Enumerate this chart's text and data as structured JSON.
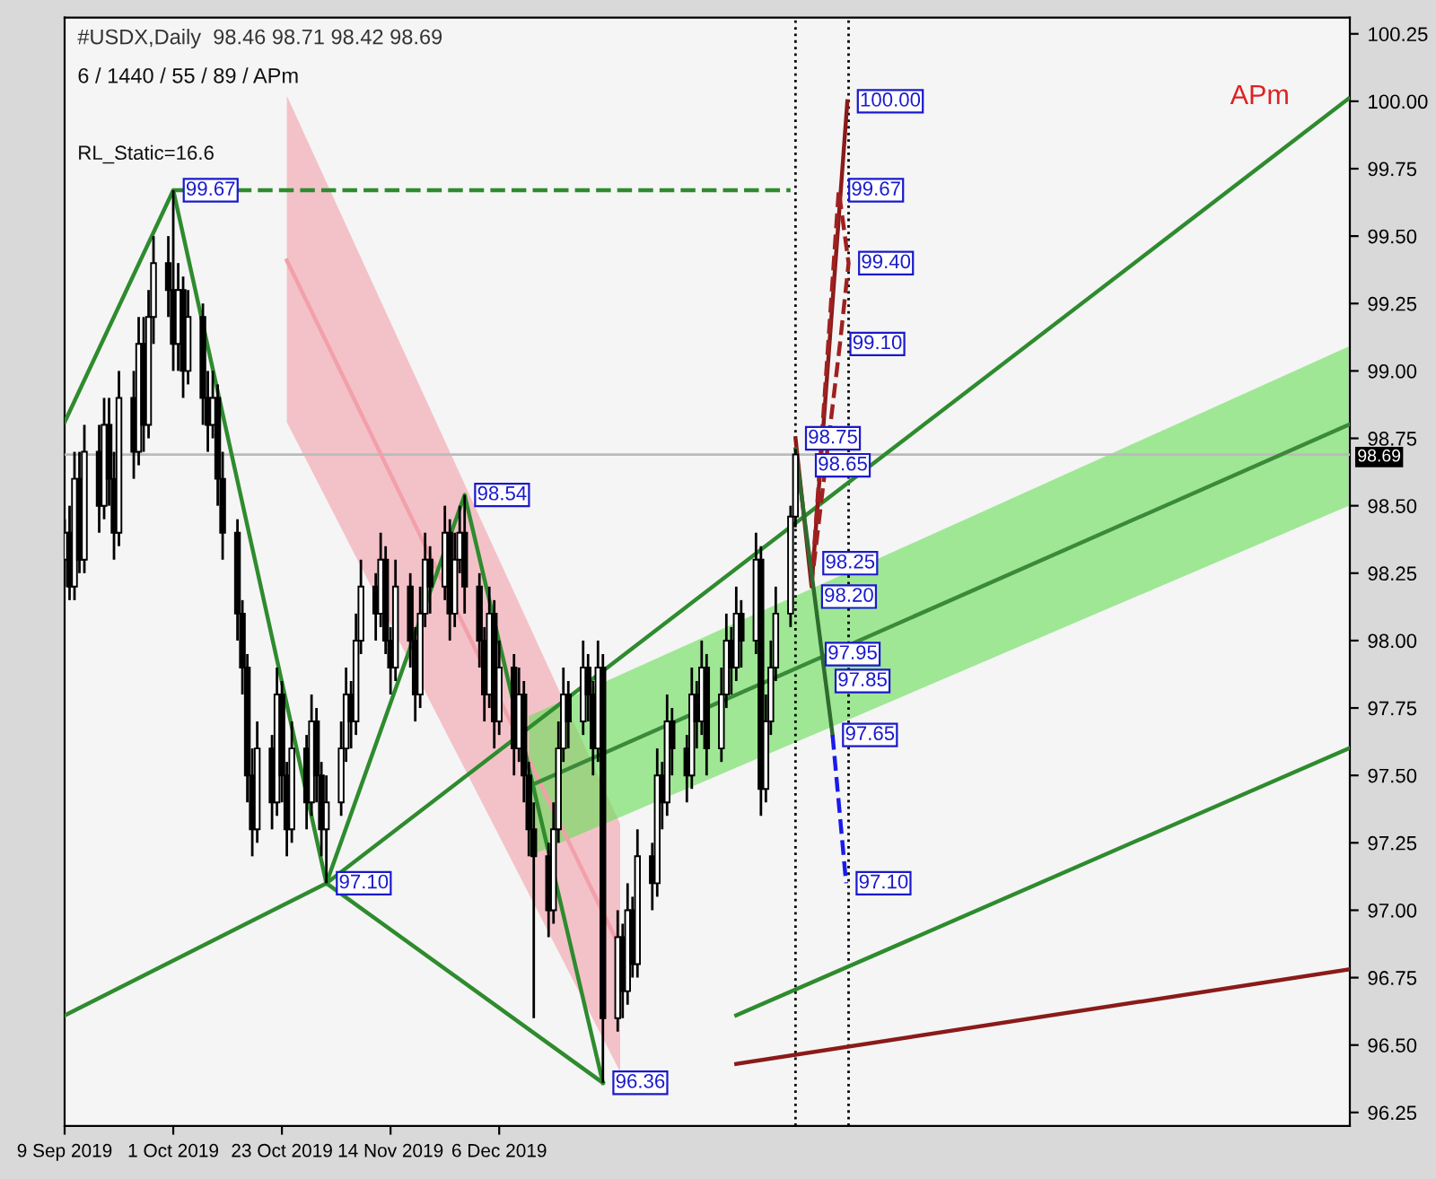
{
  "chart_data": {
    "type": "candlestick",
    "title": "#USDX,Daily  98.46 98.71 98.42 98.69",
    "subtitle": "6 / 1440 / 55 / 89 / APm",
    "x": [
      "2019-09-09",
      "2019-09-10",
      "2019-09-11",
      "2019-09-12",
      "2019-09-13",
      "2019-09-16",
      "2019-09-17",
      "2019-09-18",
      "2019-09-19",
      "2019-09-20",
      "2019-09-23",
      "2019-09-24",
      "2019-09-25",
      "2019-09-26",
      "2019-09-27",
      "2019-09-30",
      "2019-10-01",
      "2019-10-02",
      "2019-10-03",
      "2019-10-04",
      "2019-10-07",
      "2019-10-08",
      "2019-10-09",
      "2019-10-10",
      "2019-10-11",
      "2019-10-14",
      "2019-10-15",
      "2019-10-16",
      "2019-10-17",
      "2019-10-18",
      "2019-10-21",
      "2019-10-22",
      "2019-10-23",
      "2019-10-24",
      "2019-10-25",
      "2019-10-28",
      "2019-10-29",
      "2019-10-30",
      "2019-10-31",
      "2019-11-01",
      "2019-11-04",
      "2019-11-05",
      "2019-11-06",
      "2019-11-07",
      "2019-11-08",
      "2019-11-11",
      "2019-11-12",
      "2019-11-13",
      "2019-11-14",
      "2019-11-15",
      "2019-11-18",
      "2019-11-19",
      "2019-11-20",
      "2019-11-21",
      "2019-11-22",
      "2019-11-25",
      "2019-11-26",
      "2019-11-27",
      "2019-11-28",
      "2019-11-29",
      "2019-12-02",
      "2019-12-03",
      "2019-12-04",
      "2019-12-05",
      "2019-12-06",
      "2019-12-09",
      "2019-12-10",
      "2019-12-11",
      "2019-12-12",
      "2019-12-13",
      "2019-12-16",
      "2019-12-17",
      "2019-12-18",
      "2019-12-19",
      "2019-12-20",
      "2019-12-23",
      "2019-12-24",
      "2019-12-25",
      "2019-12-26",
      "2019-12-27",
      "2019-12-30",
      "2019-12-31",
      "2020-01-01",
      "2020-01-02",
      "2020-01-03",
      "2020-01-06",
      "2020-01-07",
      "2020-01-08",
      "2020-01-09",
      "2020-01-10",
      "2020-01-13",
      "2020-01-14",
      "2020-01-15",
      "2020-01-16",
      "2020-01-17",
      "2020-01-20",
      "2020-01-21",
      "2020-01-22",
      "2020-01-23",
      "2020-01-24",
      "2020-01-27",
      "2020-01-28",
      "2020-01-29",
      "2020-01-30",
      "2020-01-31",
      "2020-02-03",
      "2020-02-04"
    ],
    "ohlc": [
      [
        98.3,
        98.45,
        98.2,
        98.4
      ],
      [
        98.4,
        98.5,
        98.15,
        98.2
      ],
      [
        98.2,
        98.7,
        98.15,
        98.6
      ],
      [
        98.6,
        98.7,
        98.25,
        98.3
      ],
      [
        98.3,
        98.8,
        98.25,
        98.7
      ],
      [
        98.7,
        98.8,
        98.4,
        98.5
      ],
      [
        98.5,
        98.9,
        98.45,
        98.8
      ],
      [
        98.8,
        98.9,
        98.5,
        98.6
      ],
      [
        98.6,
        98.7,
        98.3,
        98.4
      ],
      [
        98.4,
        99.0,
        98.35,
        98.9
      ],
      [
        98.9,
        99.0,
        98.6,
        98.7
      ],
      [
        98.7,
        99.2,
        98.65,
        99.1
      ],
      [
        99.1,
        99.2,
        98.7,
        98.8
      ],
      [
        98.8,
        99.3,
        98.75,
        99.2
      ],
      [
        99.2,
        99.5,
        99.1,
        99.4
      ],
      [
        99.4,
        99.5,
        99.2,
        99.3
      ],
      [
        99.3,
        99.67,
        99.0,
        99.1
      ],
      [
        99.1,
        99.4,
        99.0,
        99.3
      ],
      [
        99.3,
        99.35,
        98.9,
        99.0
      ],
      [
        99.0,
        99.3,
        98.95,
        99.2
      ],
      [
        99.2,
        99.25,
        98.8,
        98.9
      ],
      [
        98.9,
        99.0,
        98.7,
        98.8
      ],
      [
        98.8,
        99.0,
        98.75,
        98.9
      ],
      [
        98.9,
        98.95,
        98.5,
        98.6
      ],
      [
        98.6,
        98.7,
        98.3,
        98.4
      ],
      [
        98.4,
        98.45,
        98.0,
        98.1
      ],
      [
        98.1,
        98.15,
        97.8,
        97.9
      ],
      [
        97.9,
        97.95,
        97.4,
        97.5
      ],
      [
        97.5,
        97.6,
        97.2,
        97.3
      ],
      [
        97.3,
        97.7,
        97.25,
        97.6
      ],
      [
        97.6,
        97.65,
        97.3,
        97.4
      ],
      [
        97.4,
        97.9,
        97.35,
        97.8
      ],
      [
        97.8,
        97.85,
        97.4,
        97.5
      ],
      [
        97.5,
        97.55,
        97.2,
        97.3
      ],
      [
        97.3,
        97.7,
        97.25,
        97.6
      ],
      [
        97.6,
        97.65,
        97.3,
        97.4
      ],
      [
        97.4,
        97.8,
        97.35,
        97.7
      ],
      [
        97.7,
        97.75,
        97.4,
        97.5
      ],
      [
        97.5,
        97.55,
        97.2,
        97.3
      ],
      [
        97.3,
        97.5,
        97.1,
        97.4
      ],
      [
        97.4,
        97.7,
        97.35,
        97.6
      ],
      [
        97.6,
        97.9,
        97.55,
        97.8
      ],
      [
        97.8,
        97.85,
        97.6,
        97.7
      ],
      [
        97.7,
        98.1,
        97.65,
        98.0
      ],
      [
        98.0,
        98.3,
        97.95,
        98.2
      ],
      [
        98.2,
        98.25,
        98.0,
        98.1
      ],
      [
        98.1,
        98.4,
        98.05,
        98.3
      ],
      [
        98.3,
        98.35,
        97.95,
        98.0
      ],
      [
        98.0,
        98.05,
        97.8,
        97.9
      ],
      [
        97.9,
        98.3,
        97.85,
        98.2
      ],
      [
        98.2,
        98.25,
        97.9,
        98.0
      ],
      [
        98.0,
        98.05,
        97.7,
        97.8
      ],
      [
        97.8,
        98.2,
        97.75,
        98.1
      ],
      [
        98.1,
        98.4,
        98.05,
        98.3
      ],
      [
        98.3,
        98.35,
        98.1,
        98.2
      ],
      [
        98.2,
        98.5,
        98.15,
        98.4
      ],
      [
        98.4,
        98.45,
        98.0,
        98.1
      ],
      [
        98.1,
        98.4,
        98.05,
        98.3
      ],
      [
        98.3,
        98.5,
        98.25,
        98.4
      ],
      [
        98.4,
        98.54,
        98.1,
        98.2
      ],
      [
        98.2,
        98.25,
        97.9,
        98.0
      ],
      [
        98.0,
        98.05,
        97.7,
        97.8
      ],
      [
        97.8,
        98.2,
        97.75,
        98.1
      ],
      [
        98.1,
        98.15,
        97.6,
        97.7
      ],
      [
        97.7,
        98.0,
        97.65,
        97.9
      ],
      [
        97.9,
        97.95,
        97.5,
        97.6
      ],
      [
        97.6,
        97.9,
        97.55,
        97.8
      ],
      [
        97.8,
        97.85,
        97.4,
        97.5
      ],
      [
        97.5,
        97.55,
        97.2,
        97.3
      ],
      [
        97.3,
        97.4,
        96.6,
        97.2
      ],
      [
        97.2,
        97.25,
        96.9,
        97.0
      ],
      [
        97.0,
        97.4,
        96.95,
        97.3
      ],
      [
        97.3,
        97.7,
        97.25,
        97.6
      ],
      [
        97.6,
        97.9,
        97.55,
        97.8
      ],
      [
        97.8,
        97.85,
        97.6,
        97.7
      ],
      [
        97.7,
        98.0,
        97.65,
        97.9
      ],
      [
        97.9,
        97.95,
        97.7,
        97.8
      ],
      [
        97.8,
        97.85,
        97.5,
        97.6
      ],
      [
        97.6,
        98.0,
        97.55,
        97.9
      ],
      [
        97.9,
        97.95,
        96.36,
        96.6
      ],
      [
        96.6,
        97.0,
        96.55,
        96.9
      ],
      [
        96.9,
        96.95,
        96.6,
        96.7
      ],
      [
        96.7,
        97.1,
        96.65,
        97.0
      ],
      [
        97.0,
        97.05,
        96.75,
        96.8
      ],
      [
        96.8,
        97.3,
        96.75,
        97.2
      ],
      [
        97.2,
        97.25,
        97.0,
        97.1
      ],
      [
        97.1,
        97.6,
        97.05,
        97.5
      ],
      [
        97.5,
        97.55,
        97.3,
        97.4
      ],
      [
        97.4,
        97.8,
        97.35,
        97.7
      ],
      [
        97.7,
        97.75,
        97.5,
        97.6
      ],
      [
        97.6,
        97.65,
        97.4,
        97.5
      ],
      [
        97.5,
        97.9,
        97.45,
        97.8
      ],
      [
        97.8,
        97.85,
        97.6,
        97.7
      ],
      [
        97.7,
        98.0,
        97.65,
        97.9
      ],
      [
        97.9,
        97.95,
        97.5,
        97.6
      ],
      [
        97.6,
        97.9,
        97.55,
        97.8
      ],
      [
        97.8,
        98.1,
        97.75,
        98.0
      ],
      [
        98.0,
        98.05,
        97.8,
        97.9
      ],
      [
        97.9,
        98.2,
        97.85,
        98.1
      ],
      [
        98.1,
        98.15,
        97.9,
        98.0
      ],
      [
        98.0,
        98.4,
        97.95,
        98.3
      ],
      [
        98.3,
        98.35,
        97.35,
        97.45
      ],
      [
        97.45,
        97.8,
        97.4,
        97.7
      ],
      [
        97.7,
        98.0,
        97.65,
        97.9
      ],
      [
        97.9,
        98.2,
        97.85,
        98.1
      ],
      [
        98.1,
        98.5,
        98.05,
        98.46
      ],
      [
        98.46,
        98.71,
        98.42,
        98.69
      ]
    ],
    "series": [
      {
        "type": "line",
        "color": "#f2a0aa",
        "line_style": "solid",
        "x": [
          "2019-10-24",
          "2019-12-30T12:00"
        ],
        "values": [
          99.41,
          96.86
        ],
        "lower": [
          98.81,
          96.4
        ],
        "upper": [
          100.02,
          97.32
        ]
      },
      {
        "type": "line",
        "color": "#3a8a3a",
        "line_style": "solid",
        "x": [
          "2019-12-12",
          "2020-05-26"
        ],
        "values": [
          97.46,
          98.8
        ],
        "lower": [
          97.2,
          98.5
        ],
        "upper": [
          97.72,
          99.09
        ]
      },
      {
        "type": "line",
        "color": "#2e8b2e",
        "line_style": "solid",
        "x": [
          "2019-09-09",
          "2019-10-01",
          "2019-11-01",
          "2019-11-29",
          "2019-12-27"
        ],
        "values": [
          98.81,
          99.67,
          97.1,
          98.54,
          96.36
        ]
      },
      {
        "type": "line",
        "color": "#2e8b2e",
        "line_style": "solid",
        "x": [
          "2019-09-09",
          "2019-11-01",
          "2019-12-27"
        ],
        "values": [
          96.61,
          97.1,
          96.36
        ]
      },
      {
        "type": "line",
        "color": "#2e8b2e",
        "line_style": "dashed",
        "x": [
          "2019-10-01",
          "2020-02-03"
        ],
        "values": [
          99.67,
          99.67
        ]
      },
      {
        "type": "line",
        "color": "#2e8b2e",
        "line_style": "solid",
        "x": [
          "2019-11-01",
          "2020-05-26"
        ],
        "values": [
          97.1,
          100.01
        ]
      },
      {
        "type": "line",
        "color": "#2e8b2e",
        "line_style": "solid",
        "x": [
          "2020-01-23",
          "2020-05-26"
        ],
        "values": [
          96.61,
          97.6
        ]
      },
      {
        "type": "line",
        "color": "#8b1a1a",
        "line_style": "solid",
        "x": [
          "2020-01-23",
          "2020-05-26"
        ],
        "values": [
          96.43,
          96.78
        ]
      },
      {
        "type": "line",
        "color": "#8b1a1a",
        "line_style": "solid",
        "x": [
          "2020-02-04",
          "2020-02-07T06:00",
          "2020-02-14T12:00"
        ],
        "values": [
          98.75,
          98.2,
          100.0
        ]
      },
      {
        "type": "line",
        "color": "#a02020",
        "line_style": "dashed",
        "x": [
          "2020-02-07T06:00",
          "2020-02-12T18:00",
          "2020-02-14T18:00",
          "2020-02-13",
          "2020-02-07T12:00"
        ],
        "values": [
          98.2,
          99.67,
          99.4,
          99.1,
          98.25
        ]
      },
      {
        "type": "line",
        "color": "#2e6b2e",
        "line_style": "solid",
        "x": [
          "2020-02-04",
          "2020-02-11T12:00"
        ],
        "values": [
          98.71,
          97.65
        ]
      },
      {
        "type": "line",
        "color": "#1a1aee",
        "line_style": "dashed",
        "x": [
          "2020-02-11T12:00",
          "2020-02-14T06:00"
        ],
        "values": [
          97.65,
          97.1
        ]
      }
    ],
    "xlim": [
      "2019-09-09",
      "2020-05-26T06:00"
    ],
    "ylim": [
      96.2,
      100.31
    ],
    "xticks": [
      {
        "value": "2019-09-09",
        "label": "9 Sep 2019"
      },
      {
        "value": "2019-10-01",
        "label": "1 Oct 2019"
      },
      {
        "value": "2019-10-23",
        "label": "23 Oct 2019"
      },
      {
        "value": "2019-11-14",
        "label": "14 Nov 2019"
      },
      {
        "value": "2019-12-06",
        "label": "6 Dec 2019"
      }
    ],
    "yticks": [
      {
        "value": 96.25,
        "label": "96.25"
      },
      {
        "value": 96.5,
        "label": "96.50"
      },
      {
        "value": 96.75,
        "label": "96.75"
      },
      {
        "value": 97.0,
        "label": "97.00"
      },
      {
        "value": 97.25,
        "label": "97.25"
      },
      {
        "value": 97.5,
        "label": "97.50"
      },
      {
        "value": 97.75,
        "label": "97.75"
      },
      {
        "value": 98.0,
        "label": "98.00"
      },
      {
        "value": 98.25,
        "label": "98.25"
      },
      {
        "value": 98.5,
        "label": "98.50"
      },
      {
        "value": 98.75,
        "label": "98.75"
      },
      {
        "value": 99.0,
        "label": "99.00"
      },
      {
        "value": 99.25,
        "label": "99.25"
      },
      {
        "value": 99.5,
        "label": "99.50"
      },
      {
        "value": 99.75,
        "label": "99.75"
      },
      {
        "value": 100.0,
        "label": "100.00"
      },
      {
        "value": 100.25,
        "label": "100.25"
      }
    ],
    "ref_lines": [
      {
        "axis": "x",
        "value": "2020-02-04",
        "color": "#000000",
        "line_style": "dotted"
      },
      {
        "axis": "x",
        "value": "2020-02-14T18:00",
        "color": "#000000",
        "line_style": "dotted"
      },
      {
        "axis": "y",
        "value": 98.69,
        "label": "98.69",
        "color": "#bbbbbb",
        "line_style": "solid"
      }
    ],
    "annotations": [
      "RL_Static=16.6",
      "APm",
      {
        "text": "99.67",
        "x": "2019-10-01",
        "y": 99.67
      },
      {
        "text": "97.10",
        "x": "2019-11-01",
        "y": 97.1
      },
      {
        "text": "98.54",
        "x": "2019-11-29",
        "y": 98.54
      },
      {
        "text": "96.36",
        "x": "2019-12-27",
        "y": 96.36
      },
      {
        "text": "100.00",
        "x": "2020-02-14T12:00",
        "y": 100.0
      },
      {
        "text": "99.67",
        "x": "2020-02-12T18:00",
        "y": 99.67
      },
      {
        "text": "99.40",
        "x": "2020-02-14T18:00",
        "y": 99.4
      },
      {
        "text": "99.10",
        "x": "2020-02-13",
        "y": 99.1
      },
      {
        "text": "98.75",
        "x": "2020-02-04",
        "y": 98.75
      },
      {
        "text": "98.65",
        "x": "2020-02-06",
        "y": 98.65
      },
      {
        "text": "98.25",
        "x": "2020-02-07T12:00",
        "y": 98.25
      },
      {
        "text": "98.20",
        "x": "2020-02-07T06:00",
        "y": 98.2
      },
      {
        "text": "97.95",
        "x": "2020-02-08T00:00",
        "y": 97.95
      },
      {
        "text": "97.85",
        "x": "2020-02-10T00:00",
        "y": 97.85
      },
      {
        "text": "97.65",
        "x": "2020-02-11T12:00",
        "y": 97.65
      },
      {
        "text": "97.10",
        "x": "2020-02-14T06:00",
        "y": 97.1
      }
    ],
    "grid": false,
    "legend": false
  }
}
